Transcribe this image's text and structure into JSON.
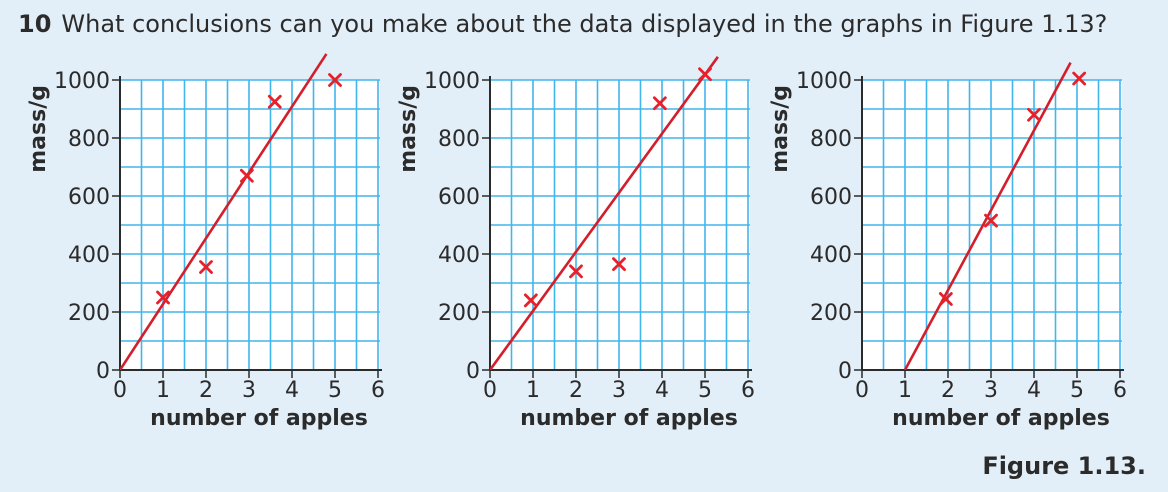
{
  "question": {
    "number": "10",
    "text": "What conclusions can you make about the data displayed in the graphs in Figure 1.13?"
  },
  "caption": "Figure 1.13.",
  "colors": {
    "background": "#e3eff8",
    "plot_background": "#ffffff",
    "grid": "#41b6ec",
    "axis": "#2b2b2b",
    "marker": "#e8202a",
    "fit_line": "#d21f2b"
  },
  "chart_data": [
    {
      "type": "scatter",
      "xlabel": "number of apples",
      "ylabel": "mass/g",
      "xlim": [
        0,
        6
      ],
      "ylim": [
        0,
        1000
      ],
      "xticks": [
        "0",
        "1",
        "2",
        "3",
        "4",
        "5",
        "6"
      ],
      "yticks": [
        "0",
        "200",
        "400",
        "600",
        "800",
        "1000"
      ],
      "grid": true,
      "points": [
        {
          "x": 1,
          "y": 250
        },
        {
          "x": 2,
          "y": 355
        },
        {
          "x": 2.95,
          "y": 670
        },
        {
          "x": 3.6,
          "y": 925
        },
        {
          "x": 5,
          "y": 1000
        }
      ],
      "fit_line": {
        "x1": 0,
        "y1": 0,
        "x2": 4.8,
        "y2": 1090
      }
    },
    {
      "type": "scatter",
      "xlabel": "number of apples",
      "ylabel": "mass/g",
      "xlim": [
        0,
        6
      ],
      "ylim": [
        0,
        1000
      ],
      "xticks": [
        "0",
        "1",
        "2",
        "3",
        "4",
        "5",
        "6"
      ],
      "yticks": [
        "0",
        "200",
        "400",
        "600",
        "800",
        "1000"
      ],
      "grid": true,
      "points": [
        {
          "x": 0.95,
          "y": 240
        },
        {
          "x": 2,
          "y": 340
        },
        {
          "x": 3,
          "y": 365
        },
        {
          "x": 3.95,
          "y": 920
        },
        {
          "x": 5,
          "y": 1020
        }
      ],
      "fit_line": {
        "x1": 0,
        "y1": 0,
        "x2": 5.3,
        "y2": 1080
      }
    },
    {
      "type": "scatter",
      "xlabel": "number of apples",
      "ylabel": "mass/g",
      "xlim": [
        0,
        6
      ],
      "ylim": [
        0,
        1000
      ],
      "xticks": [
        "0",
        "1",
        "2",
        "3",
        "4",
        "5",
        "6"
      ],
      "yticks": [
        "0",
        "200",
        "400",
        "600",
        "800",
        "1000"
      ],
      "grid": true,
      "points": [
        {
          "x": 1.95,
          "y": 245
        },
        {
          "x": 3,
          "y": 515
        },
        {
          "x": 4,
          "y": 880
        },
        {
          "x": 5.05,
          "y": 1005
        }
      ],
      "fit_line": {
        "x1": 1,
        "y1": 0,
        "x2": 4.85,
        "y2": 1060
      }
    }
  ]
}
